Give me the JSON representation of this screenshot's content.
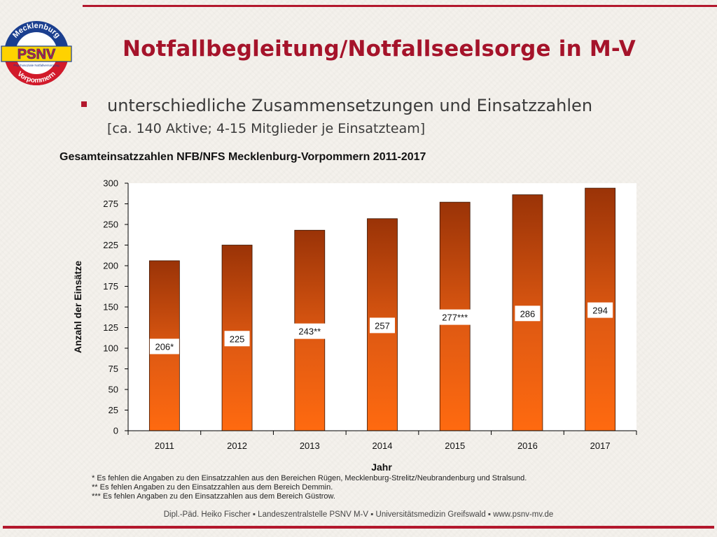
{
  "slide": {
    "title": "Notfallbegleitung/Notfallseelsorge in M-V",
    "bullet": "unterschiedliche Zusammensetzungen und Einsatzzahlen",
    "subline": "[ca. 140 Aktive; 4-15 Mitglieder je Einsatzteam]",
    "logo": {
      "top_text": "Mecklenburg",
      "main_text": "PSNV",
      "sub_text": "Psychosoziale Notfallversorgung",
      "bottom_text": "Vorpommern"
    },
    "footnotes": [
      "* Es fehlen die Angaben zu den Einsatzzahlen aus den Bereichen Rügen, Mecklenburg-Strelitz/Neubrandenburg und Stralsund.",
      "** Es fehlen Angaben zu den Einsatzzahlen aus dem Bereich Demmin.",
      "*** Es fehlen Angaben zu den Einsatzzahlen aus dem Bereich Güstrow."
    ],
    "footer": "Dipl.-Päd. Heiko Fischer  ▪ Landeszentralstelle PSNV M-V ▪ Universitätsmedizin Greifswald ▪ www.psnv-mv.de"
  },
  "colors": {
    "accent": "#b3182d",
    "bar_top": "#9a3307",
    "bar_bottom": "#ff6a10"
  },
  "chart_data": {
    "type": "bar",
    "title": "Gesamteinsatzzahlen NFB/NFS Mecklenburg-Vorpommern 2011-2017",
    "xlabel": "Jahr",
    "ylabel": "Anzahl der Einsätze",
    "categories": [
      "2011",
      "2012",
      "2013",
      "2014",
      "2015",
      "2016",
      "2017"
    ],
    "values": [
      206,
      225,
      243,
      257,
      277,
      286,
      294
    ],
    "data_labels": [
      "206*",
      "225",
      "243**",
      "257",
      "277***",
      "286",
      "294"
    ],
    "yticks": [
      "0",
      "25",
      "50",
      "75",
      "100",
      "125",
      "150",
      "175",
      "200",
      "225",
      "250",
      "275",
      "300"
    ],
    "ylim": [
      0,
      300
    ],
    "grid": false,
    "legend": "none"
  }
}
